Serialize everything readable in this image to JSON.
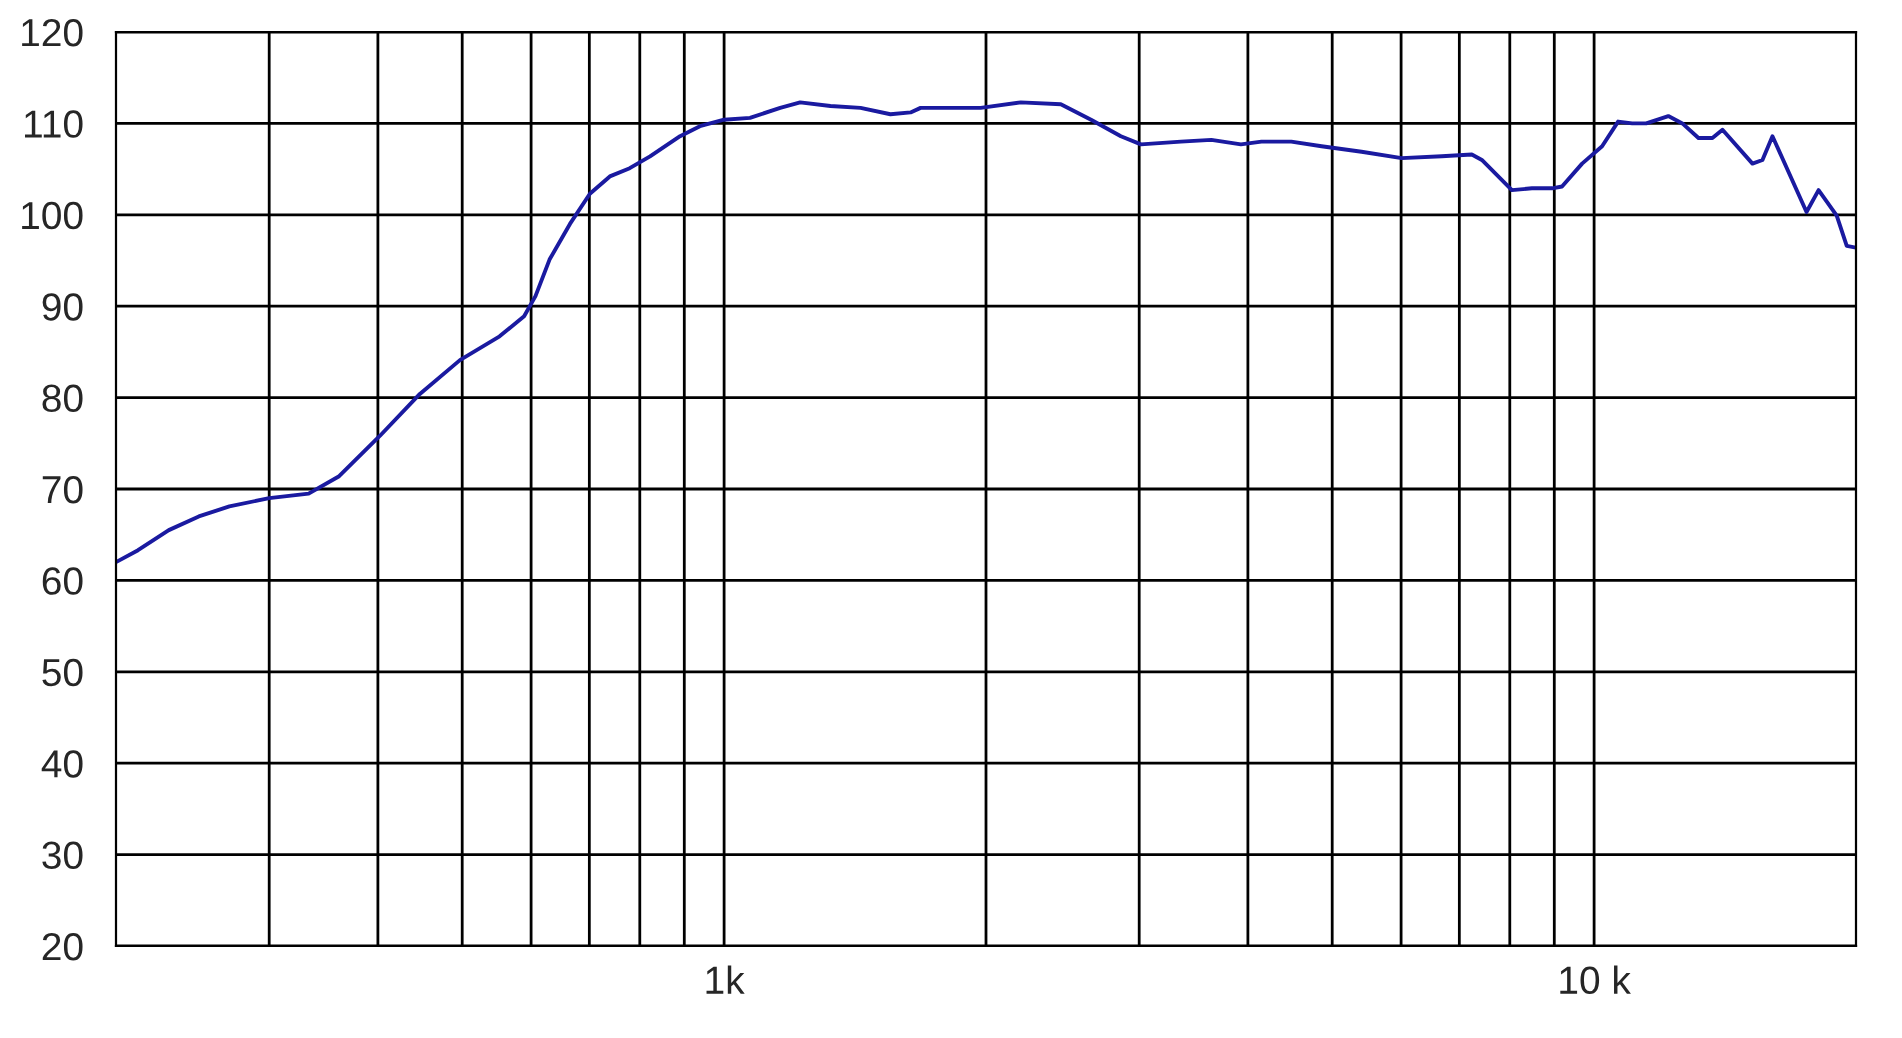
{
  "chart_data": {
    "type": "line",
    "xlim": [
      200,
      20000
    ],
    "ylim": [
      20,
      120
    ],
    "log": "x",
    "xticks": [
      {
        "value": 300,
        "label": null
      },
      {
        "value": 400,
        "label": null
      },
      {
        "value": 500,
        "label": null
      },
      {
        "value": 600,
        "label": null
      },
      {
        "value": 700,
        "label": null
      },
      {
        "value": 800,
        "label": null
      },
      {
        "value": 900,
        "label": null
      },
      {
        "value": 1000,
        "label": "1k"
      },
      {
        "value": 2000,
        "label": null
      },
      {
        "value": 3000,
        "label": null
      },
      {
        "value": 4000,
        "label": null
      },
      {
        "value": 5000,
        "label": null
      },
      {
        "value": 6000,
        "label": null
      },
      {
        "value": 7000,
        "label": null
      },
      {
        "value": 8000,
        "label": null
      },
      {
        "value": 9000,
        "label": null
      },
      {
        "value": 10000,
        "label": "10 k"
      }
    ],
    "yticks": [
      20,
      30,
      40,
      50,
      60,
      70,
      80,
      90,
      100,
      110,
      120
    ],
    "grid": true,
    "legend": false,
    "marker": "none",
    "line_style": "solid",
    "series": [
      {
        "color": "#1a1aa0",
        "x": [
          200,
          212,
          230,
          249,
          270,
          300,
          333,
          361,
          402,
          447,
          497,
          552,
          589,
          607,
          630,
          665,
          701,
          739,
          779,
          822,
          890,
          938,
          1000,
          1071,
          1160,
          1223,
          1325,
          1435,
          1553,
          1638,
          1682,
          1972,
          2193,
          2438,
          2641,
          2858,
          3014,
          3350,
          3631,
          3927,
          4146,
          4487,
          4861,
          5404,
          6009,
          6682,
          7235,
          7430,
          8045,
          8483,
          8946,
          9186,
          9687,
          10214,
          10656,
          11060,
          11479,
          12170,
          12632,
          13182,
          13677,
          14047,
          15206,
          15614,
          16033,
          17545,
          18114,
          19005,
          19516,
          20000
        ],
        "values": [
          62.0,
          63.3,
          65.5,
          67.0,
          68.1,
          69.0,
          69.5,
          71.4,
          75.8,
          80.4,
          84.1,
          86.7,
          88.9,
          91.1,
          95.1,
          99.0,
          102.3,
          104.2,
          105.1,
          106.4,
          108.6,
          109.7,
          110.4,
          110.6,
          111.7,
          112.3,
          111.9,
          111.7,
          111.0,
          111.2,
          111.7,
          111.7,
          112.3,
          112.1,
          110.4,
          108.6,
          107.7,
          108.0,
          108.2,
          107.7,
          108.0,
          108.0,
          107.5,
          106.9,
          106.2,
          106.4,
          106.6,
          106.0,
          102.7,
          102.9,
          102.9,
          103.1,
          105.6,
          107.5,
          110.2,
          110.0,
          110.0,
          110.8,
          110.0,
          108.4,
          108.4,
          109.3,
          105.6,
          106.0,
          108.6,
          100.3,
          102.7,
          99.9,
          96.6,
          96.4
        ]
      }
    ]
  }
}
